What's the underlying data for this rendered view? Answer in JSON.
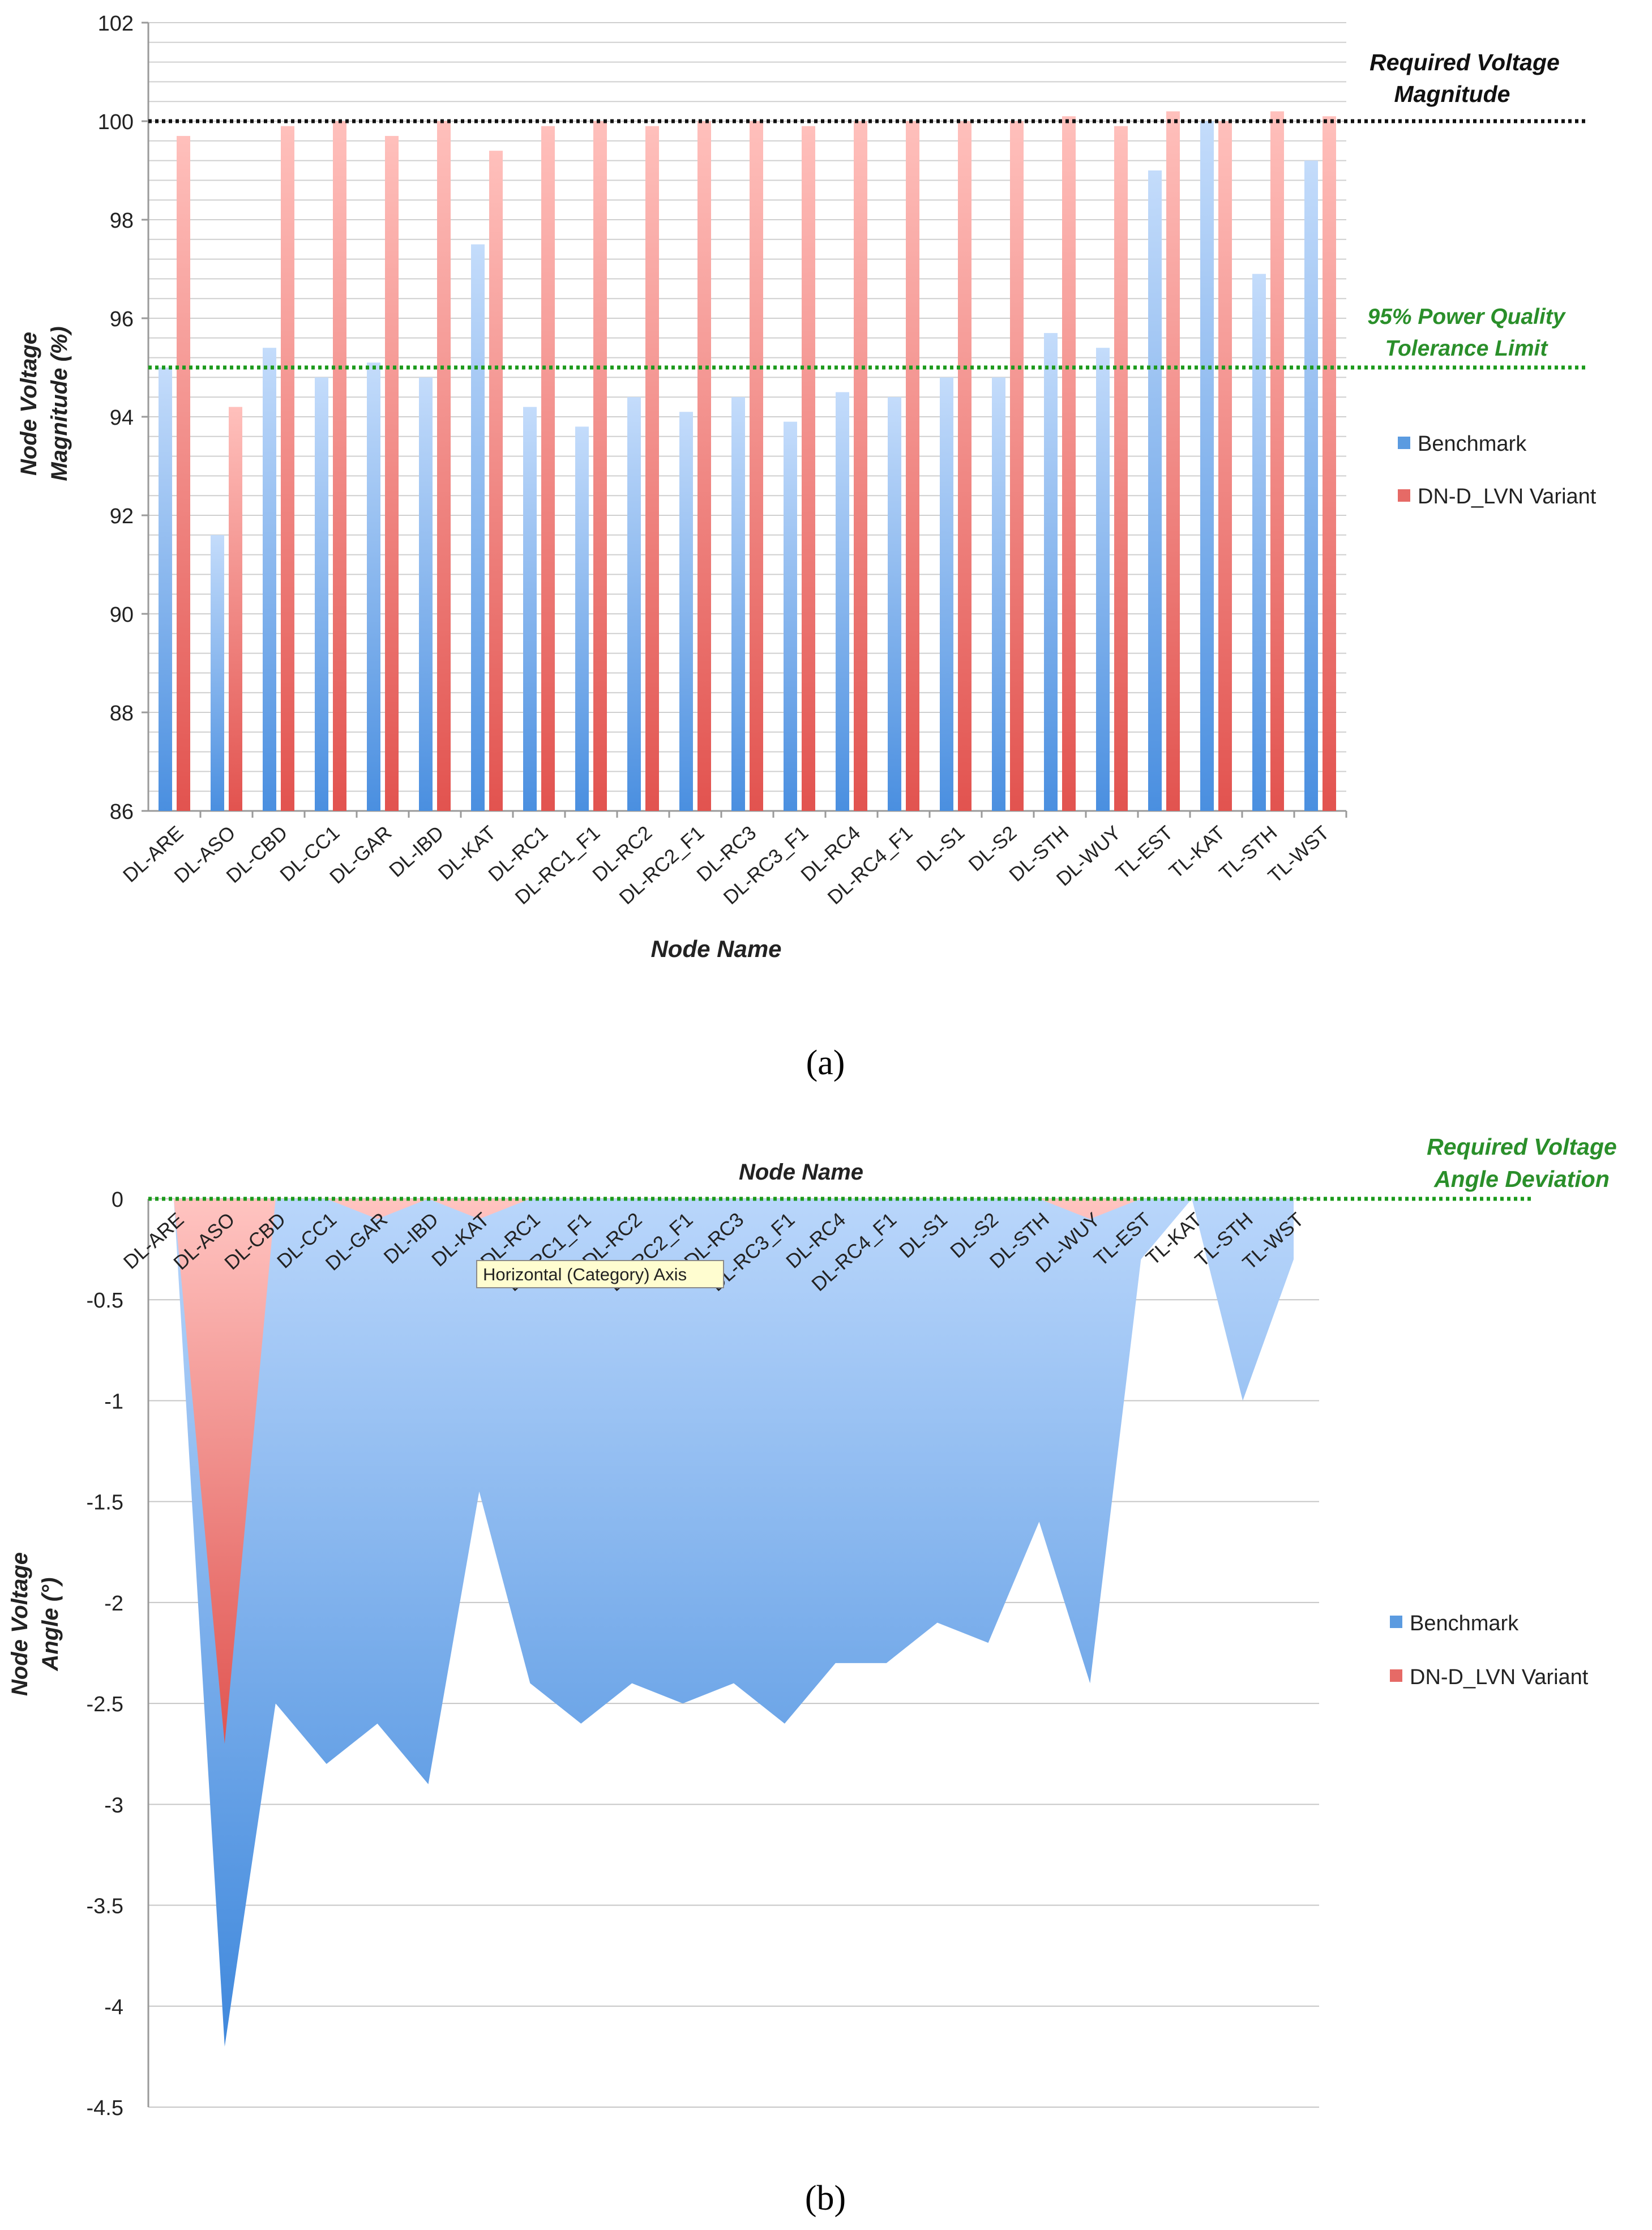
{
  "figure": {
    "panel_a_label": "(a)",
    "panel_b_label": "(b)",
    "tooltip_text": "Horizontal (Category) Axis",
    "colors": {
      "benchmark": "#5b9be0",
      "benchmark_light": "#bcd8fb",
      "variant": "#e66a66",
      "variant_light": "#ffc4c1",
      "required_line": "#111111",
      "tolerance_line": "#1c9a1c",
      "annotation_green": "#2a8f2a",
      "grid": "#c8c8c8"
    }
  },
  "chart_data": [
    {
      "type": "bar",
      "panel": "a",
      "title": "",
      "xlabel": "Node Name",
      "ylabel": "Node Voltage Magnitude (%)",
      "ylim": [
        86,
        102
      ],
      "yticks": [
        "86",
        "88",
        "90",
        "92",
        "94",
        "96",
        "98",
        "100",
        "102"
      ],
      "categories": [
        "DL-ARE",
        "DL-ASO",
        "DL-CBD",
        "DL-CC1",
        "DL-GAR",
        "DL-IBD",
        "DL-KAT",
        "DL-RC1",
        "DL-RC1_F1",
        "DL-RC2",
        "DL-RC2_F1",
        "DL-RC3",
        "DL-RC3_F1",
        "DL-RC4",
        "DL-RC4_F1",
        "DL-S1",
        "DL-S2",
        "DL-STH",
        "DL-WUY",
        "TL-EST",
        "TL-KAT",
        "TL-STH",
        "TL-WST"
      ],
      "series": [
        {
          "name": "Benchmark",
          "values": [
            95.0,
            91.6,
            95.4,
            94.8,
            95.1,
            94.8,
            97.5,
            94.2,
            93.8,
            94.4,
            94.1,
            94.4,
            93.9,
            94.5,
            94.4,
            94.8,
            94.8,
            95.7,
            95.4,
            99.0,
            100.0,
            96.9,
            99.2
          ]
        },
        {
          "name": "DN-D_LVN Variant",
          "values": [
            99.7,
            94.2,
            99.9,
            100.0,
            99.7,
            100.0,
            99.4,
            99.9,
            100.0,
            99.9,
            100.0,
            100.0,
            99.9,
            100.0,
            100.0,
            100.0,
            100.0,
            100.1,
            99.9,
            100.2,
            100.0,
            100.2,
            100.1
          ]
        }
      ],
      "reference_lines": [
        {
          "value": 100,
          "label_line1": "Required Voltage",
          "label_line2": "Magnitude"
        },
        {
          "value": 95,
          "label_line1": "95% Power Quality",
          "label_line2": "Tolerance Limit"
        }
      ],
      "legend": {
        "placement": "right",
        "entries": [
          "Benchmark",
          "DN-D_LVN Variant"
        ]
      }
    },
    {
      "type": "area",
      "panel": "b",
      "title": "",
      "xlabel": "Node Name",
      "ylabel": "Node Voltage Angle (°)",
      "ylim": [
        -4.5,
        0
      ],
      "yticks": [
        "0",
        "-0.5",
        "-1",
        "-1.5",
        "-2",
        "-2.5",
        "-3",
        "-3.5",
        "-4",
        "-4.5"
      ],
      "categories": [
        "DL-ARE",
        "DL-ASO",
        "DL-CBD",
        "DL-CC1",
        "DL-GAR",
        "DL-IBD",
        "DL-KAT",
        "DL-RC1",
        "DL-RC1_F1",
        "DL-RC2",
        "DL-RC2_F1",
        "DL-RC3",
        "DL-RC3_F1",
        "DL-RC4",
        "DL-RC4_F1",
        "DL-S1",
        "DL-S2",
        "DL-STH",
        "DL-WUY",
        "TL-EST",
        "TL-KAT",
        "TL-STH",
        "TL-WST"
      ],
      "series": [
        {
          "name": "Benchmark",
          "values": [
            0,
            -4.2,
            -2.5,
            -2.8,
            -2.6,
            -2.9,
            -1.45,
            -2.4,
            -2.6,
            -2.4,
            -2.5,
            -2.4,
            -2.6,
            -2.3,
            -2.3,
            -2.1,
            -2.2,
            -1.6,
            -2.4,
            -0.3,
            0,
            -1.0,
            -0.3
          ]
        },
        {
          "name": "DN-D_LVN Variant",
          "values": [
            0,
            -2.7,
            0,
            0,
            -0.1,
            0,
            -0.1,
            0,
            0,
            0,
            0,
            0,
            0,
            0,
            0,
            0,
            0,
            0,
            -0.1,
            0,
            0,
            0,
            0
          ]
        }
      ],
      "reference_lines": [
        {
          "value": 0,
          "label_line1": "Required Voltage",
          "label_line2": "Angle Deviation"
        }
      ],
      "legend": {
        "placement": "right",
        "entries": [
          "Benchmark",
          "DN-D_LVN Variant"
        ]
      }
    }
  ]
}
